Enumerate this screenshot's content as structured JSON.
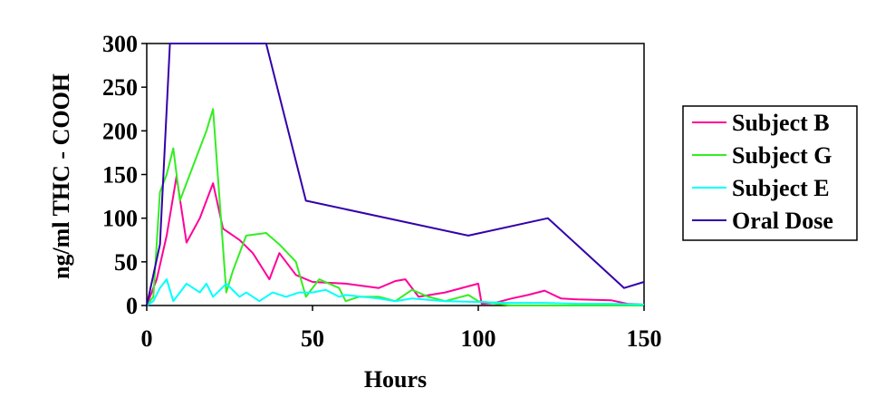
{
  "chart_data": {
    "type": "line",
    "title": "",
    "xlabel": "Hours",
    "ylabel": "ng/ml THC - COOH",
    "xlim": [
      0,
      150
    ],
    "ylim": [
      0,
      300
    ],
    "xticks": [
      0,
      50,
      100,
      150
    ],
    "yticks": [
      0,
      50,
      100,
      150,
      200,
      250,
      300
    ],
    "grid": false,
    "legend_position": "right",
    "series": [
      {
        "name": "Subject B",
        "color": "#ff0099",
        "x": [
          0,
          3,
          6,
          9,
          12,
          16,
          20,
          23,
          28,
          32,
          37,
          40,
          45,
          50,
          60,
          70,
          75,
          78,
          82,
          90,
          100,
          101,
          105,
          110,
          115,
          120,
          125,
          130,
          140,
          145,
          150
        ],
        "y": [
          0,
          30,
          80,
          148,
          72,
          100,
          140,
          88,
          75,
          60,
          30,
          60,
          35,
          27,
          25,
          20,
          28,
          30,
          10,
          15,
          25,
          2,
          3,
          8,
          12,
          17,
          8,
          7,
          6,
          2,
          1
        ]
      },
      {
        "name": "Subject G",
        "color": "#33ee22",
        "x": [
          0,
          2,
          4,
          6,
          8,
          10,
          14,
          18,
          20,
          24,
          26,
          30,
          36,
          40,
          45,
          48,
          52,
          58,
          60,
          64,
          70,
          75,
          80,
          85,
          90,
          97,
          100,
          110,
          120,
          130,
          140,
          150
        ],
        "y": [
          0,
          10,
          130,
          150,
          180,
          120,
          160,
          200,
          225,
          15,
          40,
          80,
          83,
          70,
          50,
          10,
          30,
          20,
          5,
          10,
          10,
          5,
          18,
          10,
          5,
          12,
          5,
          0,
          0,
          0,
          0,
          0
        ]
      },
      {
        "name": "Subject E",
        "color": "#00ffff",
        "x": [
          0,
          2,
          4,
          6,
          8,
          10,
          12,
          16,
          18,
          20,
          24,
          28,
          30,
          34,
          38,
          42,
          46,
          50,
          54,
          58,
          60,
          65,
          70,
          75,
          80,
          90,
          100,
          110,
          120,
          130,
          140,
          150
        ],
        "y": [
          0,
          5,
          20,
          30,
          5,
          15,
          25,
          15,
          25,
          10,
          25,
          10,
          15,
          5,
          15,
          10,
          15,
          15,
          18,
          10,
          12,
          10,
          8,
          5,
          8,
          5,
          4,
          3,
          3,
          2,
          2,
          1
        ]
      },
      {
        "name": "Oral Dose",
        "color": "#3300aa",
        "x": [
          0,
          4,
          7,
          20,
          36,
          48,
          97,
          121,
          144,
          150
        ],
        "y": [
          0,
          70,
          300,
          300,
          300,
          120,
          80,
          100,
          20,
          27
        ]
      }
    ]
  }
}
